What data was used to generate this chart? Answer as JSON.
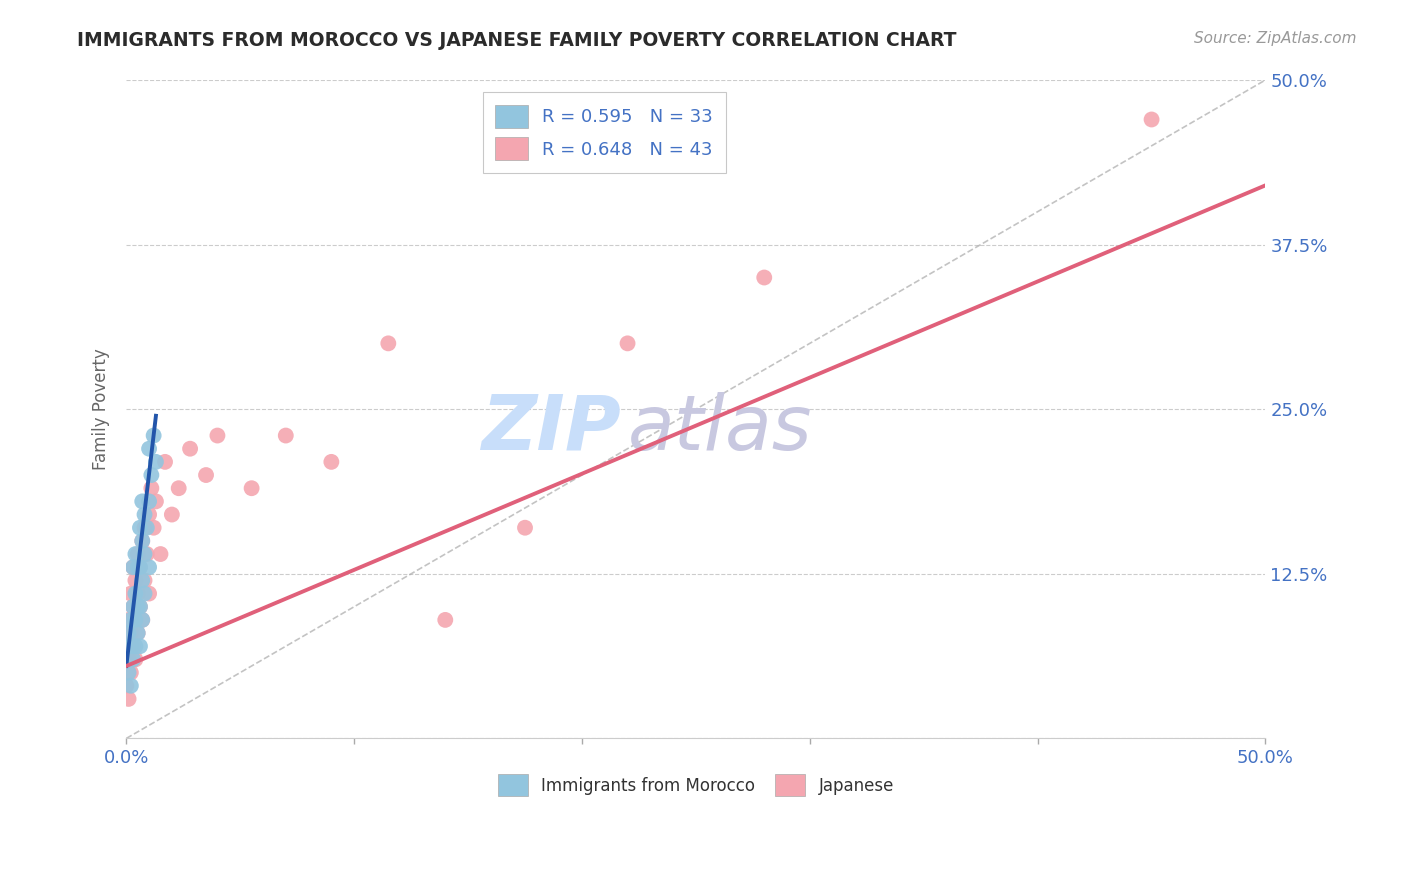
{
  "title": "IMMIGRANTS FROM MOROCCO VS JAPANESE FAMILY POVERTY CORRELATION CHART",
  "source": "Source: ZipAtlas.com",
  "ylabel": "Family Poverty",
  "yticks": [
    0.0,
    0.125,
    0.25,
    0.375,
    0.5
  ],
  "ytick_labels_right": [
    "",
    "12.5%",
    "25.0%",
    "37.5%",
    "50.0%"
  ],
  "xlim": [
    0.0,
    0.5
  ],
  "ylim": [
    0.0,
    0.5
  ],
  "morocco_color": "#92C5DE",
  "japanese_color": "#F4A6B0",
  "morocco_trend_color": "#2255AA",
  "japanese_trend_color": "#E0607A",
  "morocco_R": 0.595,
  "morocco_N": 33,
  "japanese_R": 0.648,
  "japanese_N": 43,
  "morocco_points_x": [
    0.001,
    0.001,
    0.002,
    0.002,
    0.002,
    0.003,
    0.003,
    0.003,
    0.004,
    0.004,
    0.004,
    0.004,
    0.005,
    0.005,
    0.005,
    0.006,
    0.006,
    0.006,
    0.006,
    0.007,
    0.007,
    0.007,
    0.007,
    0.008,
    0.008,
    0.008,
    0.009,
    0.01,
    0.01,
    0.01,
    0.011,
    0.012,
    0.013
  ],
  "morocco_points_y": [
    0.05,
    0.08,
    0.04,
    0.07,
    0.09,
    0.06,
    0.1,
    0.13,
    0.07,
    0.09,
    0.11,
    0.14,
    0.08,
    0.1,
    0.13,
    0.07,
    0.1,
    0.13,
    0.16,
    0.09,
    0.12,
    0.15,
    0.18,
    0.11,
    0.14,
    0.17,
    0.16,
    0.13,
    0.18,
    0.22,
    0.2,
    0.23,
    0.21
  ],
  "japanese_points_x": [
    0.0,
    0.001,
    0.001,
    0.001,
    0.002,
    0.002,
    0.002,
    0.003,
    0.003,
    0.003,
    0.004,
    0.004,
    0.005,
    0.005,
    0.005,
    0.006,
    0.006,
    0.007,
    0.007,
    0.008,
    0.008,
    0.009,
    0.01,
    0.01,
    0.011,
    0.012,
    0.013,
    0.015,
    0.017,
    0.02,
    0.023,
    0.028,
    0.035,
    0.04,
    0.055,
    0.07,
    0.09,
    0.115,
    0.14,
    0.175,
    0.22,
    0.28,
    0.45
  ],
  "japanese_points_y": [
    0.04,
    0.03,
    0.06,
    0.09,
    0.05,
    0.08,
    0.11,
    0.07,
    0.1,
    0.13,
    0.06,
    0.12,
    0.08,
    0.11,
    0.14,
    0.1,
    0.13,
    0.09,
    0.15,
    0.12,
    0.16,
    0.14,
    0.11,
    0.17,
    0.19,
    0.16,
    0.18,
    0.14,
    0.21,
    0.17,
    0.19,
    0.22,
    0.2,
    0.23,
    0.19,
    0.23,
    0.21,
    0.3,
    0.09,
    0.16,
    0.3,
    0.35,
    0.47
  ],
  "morocco_trend_x": [
    0.0,
    0.013
  ],
  "morocco_trend_y": [
    0.055,
    0.245
  ],
  "japanese_trend_x": [
    0.0,
    0.5
  ],
  "japanese_trend_y": [
    0.055,
    0.42
  ],
  "diag_line_x": [
    0.0,
    0.5
  ],
  "diag_line_y": [
    0.0,
    0.5
  ],
  "background_color": "#FFFFFF",
  "grid_color": "#CCCCCC",
  "tick_color": "#4472C4",
  "title_color": "#2B2B2B",
  "source_color": "#999999",
  "watermark_zip_color": "#C8DEFA",
  "watermark_atlas_color": "#C8C8E0"
}
